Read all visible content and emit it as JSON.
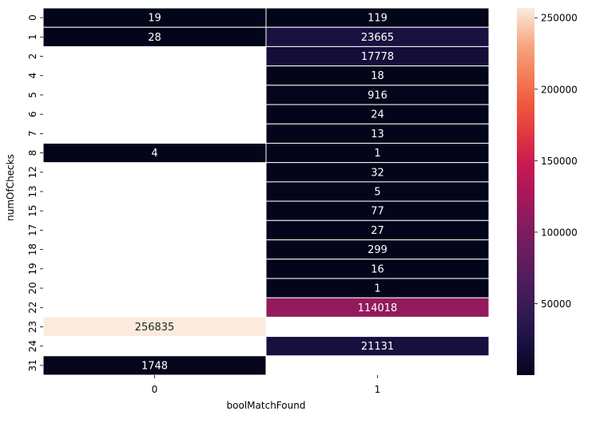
{
  "chart_data": {
    "type": "heatmap",
    "xlabel": "boolMatchFound",
    "ylabel": "numOfChecks",
    "columns": [
      "0",
      "1"
    ],
    "rows": [
      "0",
      "1",
      "2",
      "4",
      "5",
      "6",
      "7",
      "8",
      "12",
      "13",
      "15",
      "17",
      "18",
      "19",
      "20",
      "22",
      "23",
      "24",
      "31"
    ],
    "values": [
      [
        19,
        119
      ],
      [
        28,
        23665
      ],
      [
        null,
        17778
      ],
      [
        null,
        18
      ],
      [
        null,
        916
      ],
      [
        null,
        24
      ],
      [
        null,
        13
      ],
      [
        4,
        1
      ],
      [
        null,
        32
      ],
      [
        null,
        5
      ],
      [
        null,
        77
      ],
      [
        null,
        27
      ],
      [
        null,
        299
      ],
      [
        null,
        16
      ],
      [
        null,
        1
      ],
      [
        null,
        114018
      ],
      [
        256835,
        null
      ],
      [
        null,
        21131
      ],
      [
        1748,
        null
      ]
    ],
    "colorbar": {
      "colormap": "rocket",
      "vmin": 1,
      "vmax": 256835,
      "ticks": [
        50000,
        100000,
        150000,
        200000,
        250000
      ],
      "tick_labels": [
        "50000",
        "100000",
        "150000",
        "200000",
        "250000"
      ]
    },
    "annotations": true,
    "grid": false,
    "cell_border_color": "#ffffff"
  }
}
